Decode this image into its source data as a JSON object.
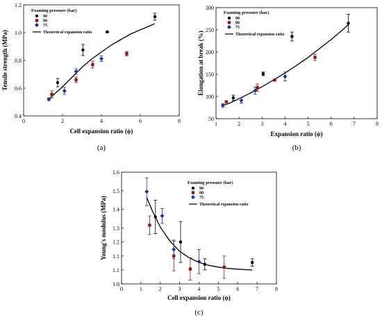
{
  "chart_data": [
    {
      "type": "scatter",
      "panel_label": "(a)",
      "xlabel": "Cell expansion ratio (ϕ)",
      "ylabel": "Tensile strength (MPa)",
      "xlim": [
        0,
        8
      ],
      "ylim": [
        0.4,
        1.2
      ],
      "xticks": [
        "0",
        "2",
        "4",
        "6",
        "8"
      ],
      "yticks": [
        "0.4",
        "0.6",
        "0.8",
        "1.0",
        "1.2"
      ],
      "xtick_values": [
        0,
        2,
        4,
        6,
        8
      ],
      "ytick_values": [
        0.4,
        0.6,
        0.8,
        1.0,
        1.2
      ],
      "legend_title": "Foaming pressure (bar)",
      "legend_placement": "top-left",
      "series": [
        {
          "name": "90",
          "marker": "circle",
          "color": "#000000",
          "points": [
            {
              "x": 1.75,
              "y": 0.64,
              "err": 0.03
            },
            {
              "x": 3.05,
              "y": 0.875,
              "err": 0.04
            },
            {
              "x": 4.3,
              "y": 1.005,
              "err": 0.005
            },
            {
              "x": 6.75,
              "y": 1.115,
              "err": 0.025
            }
          ]
        },
        {
          "name": "80",
          "marker": "square",
          "color": "#8b1a1a",
          "points": [
            {
              "x": 1.45,
              "y": 0.555,
              "err": 0.025
            },
            {
              "x": 2.7,
              "y": 0.66,
              "err": 0.02
            },
            {
              "x": 3.55,
              "y": 0.77,
              "err": 0.025
            },
            {
              "x": 5.3,
              "y": 0.848,
              "err": 0.015
            }
          ]
        },
        {
          "name": "75",
          "marker": "diamond",
          "color": "#1f2f8f",
          "points": [
            {
              "x": 1.3,
              "y": 0.52,
              "err": 0.01
            },
            {
              "x": 2.1,
              "y": 0.58,
              "err": 0.025
            },
            {
              "x": 2.7,
              "y": 0.72,
              "err": 0.02
            },
            {
              "x": 4.0,
              "y": 0.812,
              "err": 0.02
            }
          ]
        },
        {
          "name": "Theoretical expansion ratio",
          "type": "line",
          "color": "#000000",
          "x": [
            1.3,
            1.6,
            2.0,
            2.5,
            3.0,
            3.5,
            4.0,
            4.5,
            5.0,
            5.5,
            6.0,
            6.5,
            6.75
          ],
          "y": [
            0.52,
            0.56,
            0.61,
            0.68,
            0.75,
            0.81,
            0.86,
            0.91,
            0.95,
            0.99,
            1.02,
            1.05,
            1.065
          ]
        }
      ]
    },
    {
      "type": "scatter",
      "panel_label": "(b)",
      "xlabel": "Expansion ratio (ϕ)",
      "ylabel": "Elongation at break (%)",
      "xlim": [
        1,
        8
      ],
      "ylim": [
        50,
        300
      ],
      "xticks": [
        "1",
        "2",
        "3",
        "4",
        "5",
        "6",
        "7",
        "8"
      ],
      "yticks": [
        "50",
        "100",
        "150",
        "200",
        "250",
        "300"
      ],
      "xtick_values": [
        1,
        2,
        3,
        4,
        5,
        6,
        7,
        8
      ],
      "ytick_values": [
        50,
        100,
        150,
        200,
        250,
        300
      ],
      "legend_title": "Foaming pressure (bar)",
      "legend_placement": "top-left",
      "series": [
        {
          "name": "90",
          "marker": "circle",
          "color": "#000000",
          "points": [
            {
              "x": 1.75,
              "y": 97,
              "err": 6
            },
            {
              "x": 3.05,
              "y": 151,
              "err": 4
            },
            {
              "x": 4.3,
              "y": 235,
              "err": 10
            },
            {
              "x": 6.75,
              "y": 265,
              "err": 20
            }
          ]
        },
        {
          "name": "80",
          "marker": "square",
          "color": "#8b1a1a",
          "points": [
            {
              "x": 1.45,
              "y": 88,
              "err": 2
            },
            {
              "x": 2.8,
              "y": 120,
              "err": 8
            },
            {
              "x": 3.55,
              "y": 137,
              "err": 2
            },
            {
              "x": 5.3,
              "y": 188,
              "err": 7
            }
          ]
        },
        {
          "name": "75",
          "marker": "diamond",
          "color": "#1f2f8f",
          "points": [
            {
              "x": 1.3,
              "y": 80,
              "err": 4
            },
            {
              "x": 2.1,
              "y": 91,
              "err": 6
            },
            {
              "x": 2.7,
              "y": 113,
              "err": 8
            },
            {
              "x": 4.0,
              "y": 145,
              "err": 10
            }
          ]
        },
        {
          "name": "Theoretical expansion ratio",
          "type": "line",
          "color": "#000000",
          "x": [
            1.3,
            1.6,
            2.0,
            2.5,
            3.0,
            3.5,
            4.0,
            4.5,
            5.0,
            5.5,
            6.0,
            6.5,
            6.75
          ],
          "y": [
            80,
            85,
            95,
            108,
            122,
            137,
            153,
            170,
            188,
            208,
            228,
            250,
            262
          ]
        }
      ]
    },
    {
      "type": "scatter",
      "panel_label": "(c)",
      "xlabel": "Cell expansion ratio (ϕ)",
      "ylabel": "Young's modulus (MPa)",
      "xlim": [
        0,
        8
      ],
      "ylim": [
        1.0,
        1.6
      ],
      "xticks": [
        "0",
        "1",
        "2",
        "3",
        "4",
        "5",
        "6",
        "7",
        "8"
      ],
      "yticks": [
        "1.0",
        "1.1",
        "1.1",
        "1.2",
        "1.3",
        "1.4",
        "1.5",
        "1.6"
      ],
      "xtick_values": [
        0,
        1,
        2,
        3,
        4,
        5,
        6,
        7,
        8
      ],
      "ytick_values": [
        1.0,
        1.075,
        1.15,
        1.225,
        1.3,
        1.4,
        1.5,
        1.6
      ],
      "legend_title": "Foaming pressure (bar)",
      "legend_placement": "top-right",
      "series": [
        {
          "name": "90",
          "marker": "circle",
          "color": "#000000",
          "points": [
            {
              "x": 1.75,
              "y": 1.36,
              "err": 0.09
            },
            {
              "x": 3.05,
              "y": 1.225,
              "err": 0.11
            },
            {
              "x": 4.3,
              "y": 1.105,
              "err": 0.03
            },
            {
              "x": 6.75,
              "y": 1.115,
              "err": 0.02
            }
          ]
        },
        {
          "name": "80",
          "marker": "square",
          "color": "#8b1a1a",
          "points": [
            {
              "x": 1.45,
              "y": 1.315,
              "err": 0.05
            },
            {
              "x": 2.7,
              "y": 1.15,
              "err": 0.08
            },
            {
              "x": 3.55,
              "y": 1.08,
              "err": 0.06
            },
            {
              "x": 5.3,
              "y": 1.09,
              "err": 0.06
            }
          ]
        },
        {
          "name": "75",
          "marker": "diamond",
          "color": "#1f2f8f",
          "points": [
            {
              "x": 1.3,
              "y": 1.495,
              "err": 0.075
            },
            {
              "x": 2.1,
              "y": 1.365,
              "err": 0.04
            },
            {
              "x": 2.7,
              "y": 1.185,
              "err": 0.05
            },
            {
              "x": 4.0,
              "y": 1.12,
              "err": 0.065
            }
          ]
        },
        {
          "name": "Theoretical expansion ratio",
          "type": "line",
          "color": "#000000",
          "x": [
            1.3,
            1.6,
            2.0,
            2.5,
            3.0,
            3.5,
            4.0,
            4.5,
            5.0,
            5.5,
            6.0,
            6.5,
            6.75
          ],
          "y": [
            1.465,
            1.39,
            1.305,
            1.23,
            1.175,
            1.14,
            1.115,
            1.1,
            1.09,
            1.083,
            1.079,
            1.076,
            1.075
          ]
        }
      ]
    }
  ]
}
